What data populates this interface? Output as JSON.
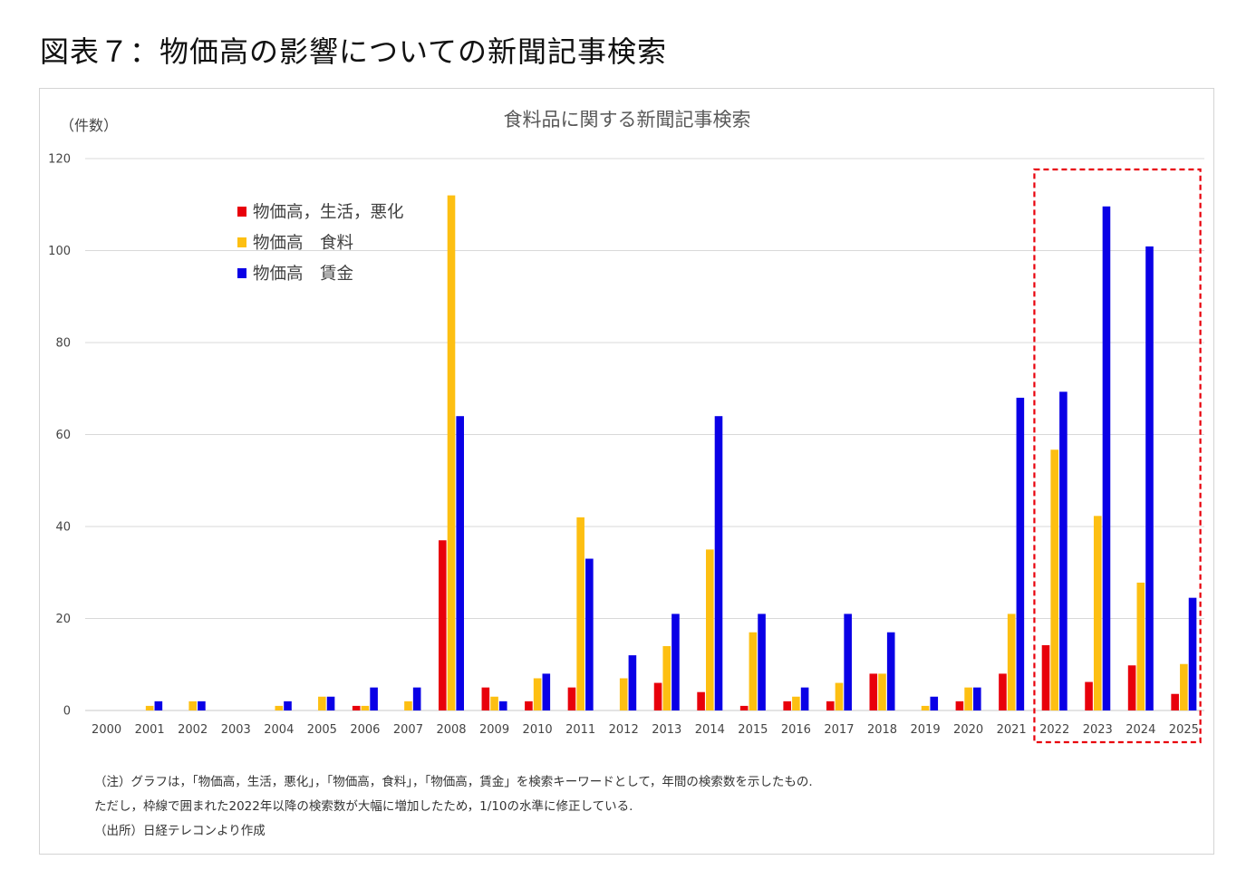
{
  "figure_title": "図表７：物価高の影響についての新聞記事検索",
  "colors": {
    "red": "#e8000b",
    "yellow": "#fdbf12",
    "blue": "#0a00e6",
    "highlight": "#e8000b",
    "grid": "#d9d9d9"
  },
  "chart_data": {
    "type": "bar",
    "title": "食料品に関する新聞記事検索",
    "ylabel": "（件数）",
    "xlabel": "",
    "ylim": [
      0,
      120
    ],
    "yticks": [
      0,
      20,
      40,
      60,
      80,
      100,
      120
    ],
    "grid": true,
    "legend_position": "top-left",
    "categories": [
      "2000",
      "2001",
      "2002",
      "2003",
      "2004",
      "2005",
      "2006",
      "2007",
      "2008",
      "2009",
      "2010",
      "2011",
      "2012",
      "2013",
      "2014",
      "2015",
      "2016",
      "2017",
      "2018",
      "2019",
      "2020",
      "2021",
      "2022",
      "2023",
      "2024",
      "2025"
    ],
    "series": [
      {
        "name": "物価高，生活，悪化",
        "color": "#e8000b",
        "values": [
          0,
          0,
          0,
          0,
          0,
          0,
          1,
          0,
          37,
          5,
          2,
          5,
          0,
          6,
          4,
          1,
          2,
          2,
          8,
          0,
          2,
          8,
          14.2,
          6.2,
          9.8,
          3.6
        ]
      },
      {
        "name": "物価高　食料",
        "color": "#fdbf12",
        "values": [
          0,
          1,
          2,
          0,
          1,
          3,
          1,
          2,
          112,
          3,
          7,
          42,
          7,
          14,
          35,
          17,
          3,
          6,
          8,
          1,
          5,
          21,
          56.7,
          42.3,
          27.8,
          10.1
        ]
      },
      {
        "name": "物価高　賃金",
        "color": "#0a00e6",
        "values": [
          0,
          2,
          2,
          0,
          2,
          3,
          5,
          5,
          64,
          2,
          8,
          33,
          12,
          21,
          64,
          21,
          5,
          21,
          17,
          3,
          5,
          68,
          69.3,
          109.6,
          100.9,
          24.5
        ]
      }
    ],
    "highlight_range": [
      "2022",
      "2025"
    ]
  },
  "notes": [
    "（注）グラフは，「物価高，生活，悪化」，「物価高，食料」，「物価高，賃金」を検索キーワードとして，年間の検索数を示したもの.",
    "ただし，枠線で囲まれた2022年以降の検索数が大幅に増加したため，1/10の水準に修正している.",
    "（出所）日経テレコンより作成"
  ]
}
